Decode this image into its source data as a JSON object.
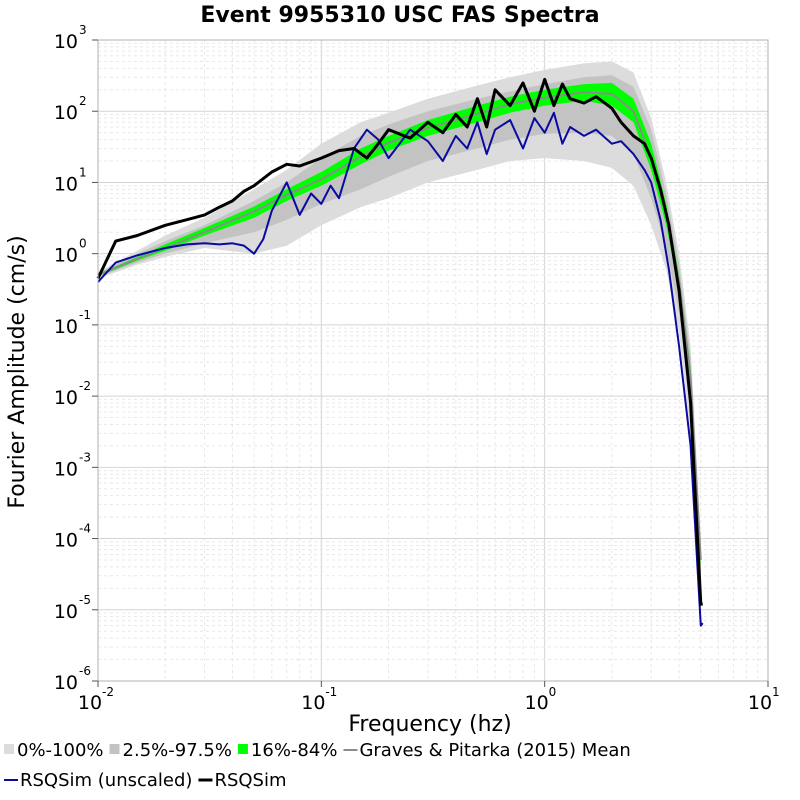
{
  "chart_data": {
    "type": "line",
    "title": "Event 9955310 USC FAS Spectra",
    "xlabel": "Frequency (hz)",
    "ylabel": "Fourier Amplitude (cm/s)",
    "x_scale": "log",
    "y_scale": "log",
    "xlim": [
      0.01,
      10
    ],
    "ylim": [
      1e-06,
      1000
    ],
    "grid": true,
    "legend_position": "bottom",
    "x_ticks": [
      {
        "base": "10",
        "exp": "-2"
      },
      {
        "base": "10",
        "exp": "-1"
      },
      {
        "base": "10",
        "exp": "0"
      },
      {
        "base": "10",
        "exp": "1"
      }
    ],
    "y_ticks": [
      {
        "base": "10",
        "exp": "-6"
      },
      {
        "base": "10",
        "exp": "-5"
      },
      {
        "base": "10",
        "exp": "-4"
      },
      {
        "base": "10",
        "exp": "-3"
      },
      {
        "base": "10",
        "exp": "-2"
      },
      {
        "base": "10",
        "exp": "-1"
      },
      {
        "base": "10",
        "exp": "0"
      },
      {
        "base": "10",
        "exp": "1"
      },
      {
        "base": "10",
        "exp": "2"
      },
      {
        "base": "10",
        "exp": "3"
      }
    ],
    "bands": [
      {
        "name": "0%-100%",
        "color": "#dcdcdc",
        "x": [
          0.01,
          0.015,
          0.02,
          0.03,
          0.05,
          0.07,
          0.1,
          0.15,
          0.2,
          0.3,
          0.5,
          0.7,
          1.0,
          1.5,
          2.0,
          2.5,
          3.0,
          3.5,
          4.0,
          4.5,
          5.0
        ],
        "lower": [
          0.45,
          0.7,
          0.9,
          1.2,
          1.0,
          1.3,
          2.5,
          4.5,
          6,
          10,
          15,
          20,
          22,
          20,
          16,
          9,
          2.5,
          0.6,
          0.08,
          0.003,
          2e-05
        ],
        "upper": [
          0.55,
          1.1,
          1.8,
          3.2,
          8,
          15,
          35,
          70,
          95,
          150,
          230,
          300,
          380,
          470,
          500,
          350,
          80,
          10,
          1.0,
          0.05,
          0.0001
        ]
      },
      {
        "name": "2.5%-97.5%",
        "color": "#c3c3c3",
        "x": [
          0.01,
          0.015,
          0.02,
          0.03,
          0.05,
          0.07,
          0.1,
          0.15,
          0.2,
          0.3,
          0.5,
          0.7,
          1.0,
          1.5,
          2.0,
          2.5,
          3.0,
          3.5,
          4.0,
          4.5,
          5.0
        ],
        "lower": [
          0.47,
          0.75,
          1.0,
          1.4,
          2.0,
          3.0,
          5,
          8,
          12,
          20,
          30,
          40,
          48,
          50,
          45,
          25,
          6,
          1.2,
          0.15,
          0.006,
          3e-05
        ],
        "upper": [
          0.53,
          1.0,
          1.5,
          2.5,
          5.5,
          10,
          22,
          45,
          65,
          100,
          150,
          190,
          240,
          300,
          320,
          220,
          55,
          7,
          0.7,
          0.035,
          8e-05
        ]
      },
      {
        "name": "16%-84%",
        "color": "#00ff00",
        "x": [
          0.01,
          0.015,
          0.02,
          0.03,
          0.05,
          0.07,
          0.1,
          0.15,
          0.2,
          0.3,
          0.5,
          0.7,
          1.0,
          1.5,
          2.0,
          2.5,
          3.0,
          3.5,
          4.0,
          4.5,
          5.0
        ],
        "lower": [
          0.48,
          0.8,
          1.1,
          1.8,
          3.2,
          5.5,
          9,
          18,
          28,
          45,
          70,
          95,
          120,
          140,
          120,
          70,
          15,
          2.5,
          0.3,
          0.012,
          4e-05
        ],
        "upper": [
          0.52,
          0.9,
          1.35,
          2.3,
          4.6,
          8,
          14,
          30,
          45,
          75,
          120,
          160,
          200,
          240,
          250,
          150,
          35,
          5,
          0.5,
          0.025,
          6e-05
        ]
      }
    ],
    "series": [
      {
        "name": "Graves & Pitarka (2015) Mean",
        "color": "#8c8c8c",
        "width": 2,
        "x": [
          0.01,
          0.015,
          0.02,
          0.03,
          0.05,
          0.07,
          0.1,
          0.15,
          0.2,
          0.3,
          0.5,
          0.7,
          1.0,
          1.5,
          2.0,
          2.5,
          3.0,
          3.5,
          4.0,
          4.5,
          5.0
        ],
        "y": [
          0.5,
          0.85,
          1.2,
          2.0,
          3.9,
          6.7,
          11,
          23,
          36,
          58,
          92,
          125,
          155,
          185,
          175,
          100,
          22,
          3.5,
          0.4,
          0.018,
          5e-05
        ]
      },
      {
        "name": "RSQSim (unscaled)",
        "color": "#0a0aa0",
        "width": 2,
        "x": [
          0.01,
          0.012,
          0.015,
          0.02,
          0.025,
          0.03,
          0.035,
          0.04,
          0.045,
          0.05,
          0.055,
          0.06,
          0.07,
          0.08,
          0.09,
          0.1,
          0.11,
          0.12,
          0.14,
          0.16,
          0.18,
          0.2,
          0.25,
          0.3,
          0.35,
          0.4,
          0.45,
          0.5,
          0.55,
          0.6,
          0.7,
          0.8,
          0.9,
          1.0,
          1.1,
          1.2,
          1.3,
          1.5,
          1.7,
          2.0,
          2.2,
          2.5,
          2.8,
          3.0,
          3.3,
          3.6,
          4.0,
          4.5,
          5.0,
          5.1
        ],
        "y": [
          0.4,
          0.75,
          0.95,
          1.2,
          1.35,
          1.4,
          1.35,
          1.4,
          1.3,
          1.0,
          1.6,
          4.0,
          10,
          3.5,
          7,
          5,
          9,
          6,
          30,
          55,
          40,
          22,
          55,
          38,
          20,
          45,
          30,
          70,
          25,
          55,
          75,
          30,
          80,
          50,
          95,
          35,
          60,
          45,
          55,
          35,
          38,
          25,
          15,
          10,
          3.0,
          0.6,
          0.05,
          0.002,
          6e-06,
          6.5e-06
        ]
      },
      {
        "name": "RSQSim",
        "color": "#000000",
        "width": 3,
        "x": [
          0.01,
          0.012,
          0.015,
          0.02,
          0.025,
          0.03,
          0.035,
          0.04,
          0.045,
          0.05,
          0.06,
          0.07,
          0.08,
          0.1,
          0.12,
          0.14,
          0.16,
          0.18,
          0.2,
          0.25,
          0.3,
          0.35,
          0.4,
          0.45,
          0.5,
          0.55,
          0.6,
          0.7,
          0.8,
          0.9,
          1.0,
          1.1,
          1.2,
          1.3,
          1.5,
          1.7,
          2.0,
          2.2,
          2.5,
          2.8,
          3.0,
          3.3,
          3.6,
          4.0,
          4.5,
          5.0,
          5.1
        ],
        "y": [
          0.45,
          1.5,
          1.8,
          2.5,
          3.0,
          3.5,
          4.5,
          5.5,
          7.5,
          9,
          14,
          18,
          17,
          22,
          28,
          30,
          22,
          35,
          55,
          42,
          70,
          50,
          90,
          60,
          150,
          60,
          200,
          120,
          250,
          100,
          280,
          120,
          240,
          150,
          130,
          160,
          110,
          70,
          45,
          35,
          22,
          8,
          2.5,
          0.3,
          0.008,
          1.2e-05,
          1.2e-05
        ]
      }
    ],
    "legend": [
      {
        "label": "0%-100%",
        "kind": "patch",
        "color": "#dcdcdc"
      },
      {
        "label": "2.5%-97.5%",
        "kind": "patch",
        "color": "#c3c3c3"
      },
      {
        "label": "16%-84%",
        "kind": "patch",
        "color": "#00ff00"
      },
      {
        "label": "Graves & Pitarka (2015) Mean",
        "kind": "line",
        "color": "#8c8c8c",
        "width": 2
      },
      {
        "label": "RSQSim (unscaled)",
        "kind": "line",
        "color": "#0a0aa0",
        "width": 2
      },
      {
        "label": "RSQSim",
        "kind": "line",
        "color": "#000000",
        "width": 3
      }
    ]
  }
}
